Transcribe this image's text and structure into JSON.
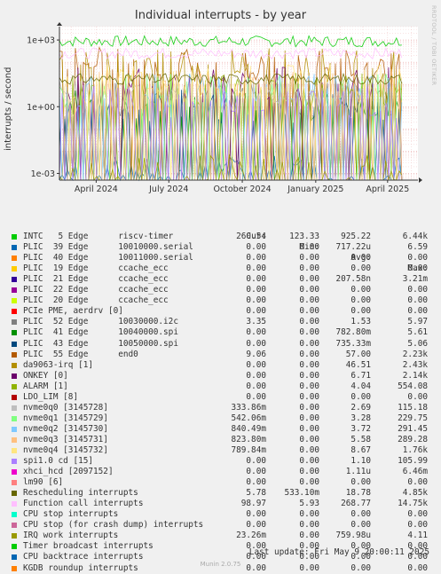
{
  "chart_data": {
    "type": "line",
    "title": "Individual interrupts - by year",
    "ylabel": "interrupts / second",
    "yscale": "log",
    "ylim": [
      0.0005,
      4000
    ],
    "yticks": [
      {
        "value": 1000,
        "label": "1e+03"
      },
      {
        "value": 1,
        "label": "1e+00"
      },
      {
        "value": 0.001,
        "label": "1e-03"
      }
    ],
    "xlim": [
      "2024-02-15",
      "2025-05-09"
    ],
    "xticks": [
      {
        "date": "2024-04-01",
        "label": "April 2024"
      },
      {
        "date": "2024-07-01",
        "label": "July 2024"
      },
      {
        "date": "2024-10-01",
        "label": "October 2024"
      },
      {
        "date": "2025-01-01",
        "label": "January 2025"
      },
      {
        "date": "2025-04-01",
        "label": "April 2025"
      }
    ],
    "grid": true,
    "series": [
      {
        "name": "INTC   5 Edge      riscv-timer",
        "color": "#00cc00",
        "values": {
          "cur": "260.54",
          "min": "123.33",
          "avg": "925.22",
          "max": "6.44k"
        }
      },
      {
        "name": "PLIC  39 Edge      10010000.serial",
        "color": "#0066b3",
        "values": {
          "cur": "0.00",
          "min": "0.00",
          "avg": "717.22u",
          "max": "6.59"
        }
      },
      {
        "name": "PLIC  40 Edge      10011000.serial",
        "color": "#ff8000",
        "values": {
          "cur": "0.00",
          "min": "0.00",
          "avg": "0.00",
          "max": "0.00"
        }
      },
      {
        "name": "PLIC  19 Edge      ccache_ecc",
        "color": "#ffcc00",
        "values": {
          "cur": "0.00",
          "min": "0.00",
          "avg": "0.00",
          "max": "0.00"
        }
      },
      {
        "name": "PLIC  21 Edge      ccache_ecc",
        "color": "#330099",
        "values": {
          "cur": "0.00",
          "min": "0.00",
          "avg": "207.58n",
          "max": "3.21m"
        }
      },
      {
        "name": "PLIC  22 Edge      ccache_ecc",
        "color": "#990099",
        "values": {
          "cur": "0.00",
          "min": "0.00",
          "avg": "0.00",
          "max": "0.00"
        }
      },
      {
        "name": "PLIC  20 Edge      ccache_ecc",
        "color": "#ccff00",
        "values": {
          "cur": "0.00",
          "min": "0.00",
          "avg": "0.00",
          "max": "0.00"
        }
      },
      {
        "name": "PCIe PME, aerdrv [0]",
        "color": "#ff0000",
        "values": {
          "cur": "0.00",
          "min": "0.00",
          "avg": "0.00",
          "max": "0.00"
        }
      },
      {
        "name": "PLIC  52 Edge      10030000.i2c",
        "color": "#808080",
        "values": {
          "cur": "3.35",
          "min": "0.00",
          "avg": "1.53",
          "max": "5.97"
        }
      },
      {
        "name": "PLIC  41 Edge      10040000.spi",
        "color": "#008f00",
        "values": {
          "cur": "0.00",
          "min": "0.00",
          "avg": "782.80m",
          "max": "5.61"
        }
      },
      {
        "name": "PLIC  43 Edge      10050000.spi",
        "color": "#00487d",
        "values": {
          "cur": "0.00",
          "min": "0.00",
          "avg": "735.33m",
          "max": "5.06"
        }
      },
      {
        "name": "PLIC  55 Edge      end0",
        "color": "#b35a00",
        "values": {
          "cur": "9.06",
          "min": "0.00",
          "avg": "57.00",
          "max": "2.23k"
        }
      },
      {
        "name": "da9063-irq [1]",
        "color": "#b38f00",
        "values": {
          "cur": "0.00",
          "min": "0.00",
          "avg": "46.51",
          "max": "2.43k"
        }
      },
      {
        "name": "ONKEY [0]",
        "color": "#6b006b",
        "values": {
          "cur": "0.00",
          "min": "0.00",
          "avg": "6.71",
          "max": "2.14k"
        }
      },
      {
        "name": "ALARM [1]",
        "color": "#8fb300",
        "values": {
          "cur": "0.00",
          "min": "0.00",
          "avg": "4.04",
          "max": "554.08"
        }
      },
      {
        "name": "LDO_LIM [8]",
        "color": "#b30000",
        "values": {
          "cur": "0.00",
          "min": "0.00",
          "avg": "0.00",
          "max": "0.00"
        }
      },
      {
        "name": "nvme0q0 [3145728]",
        "color": "#bebebe",
        "values": {
          "cur": "333.86m",
          "min": "0.00",
          "avg": "2.69",
          "max": "115.18"
        }
      },
      {
        "name": "nvme0q1 [3145729]",
        "color": "#80ff80",
        "values": {
          "cur": "542.06m",
          "min": "0.00",
          "avg": "3.28",
          "max": "229.75"
        }
      },
      {
        "name": "nvme0q2 [3145730]",
        "color": "#80c9ff",
        "values": {
          "cur": "840.49m",
          "min": "0.00",
          "avg": "3.72",
          "max": "291.45"
        }
      },
      {
        "name": "nvme0q3 [3145731]",
        "color": "#ffc080",
        "values": {
          "cur": "823.80m",
          "min": "0.00",
          "avg": "5.58",
          "max": "289.28"
        }
      },
      {
        "name": "nvme0q4 [3145732]",
        "color": "#ffe680",
        "values": {
          "cur": "789.84m",
          "min": "0.00",
          "avg": "8.67",
          "max": "1.76k"
        }
      },
      {
        "name": "spi1.0 cd [15]",
        "color": "#aa80ff",
        "values": {
          "cur": "0.00",
          "min": "0.00",
          "avg": "1.10",
          "max": "105.99"
        }
      },
      {
        "name": "xhci_hcd [2097152]",
        "color": "#ee00cc",
        "values": {
          "cur": "0.00",
          "min": "0.00",
          "avg": "1.11u",
          "max": "6.46m"
        }
      },
      {
        "name": "lm90 [6]",
        "color": "#ff8080",
        "values": {
          "cur": "0.00",
          "min": "0.00",
          "avg": "0.00",
          "max": "0.00"
        }
      },
      {
        "name": "Rescheduling interrupts",
        "color": "#666600",
        "values": {
          "cur": "5.78",
          "min": "533.10m",
          "avg": "18.78",
          "max": "4.85k"
        }
      },
      {
        "name": "Function call interrupts",
        "color": "#ffbfff",
        "values": {
          "cur": "98.97",
          "min": "5.93",
          "avg": "268.77",
          "max": "14.75k"
        }
      },
      {
        "name": "CPU stop interrupts",
        "color": "#00ffcc",
        "values": {
          "cur": "0.00",
          "min": "0.00",
          "avg": "0.00",
          "max": "0.00"
        }
      },
      {
        "name": "CPU stop (for crash dump) interrupts",
        "color": "#cc6699",
        "values": {
          "cur": "0.00",
          "min": "0.00",
          "avg": "0.00",
          "max": "0.00"
        }
      },
      {
        "name": "IRQ work interrupts",
        "color": "#999900",
        "values": {
          "cur": "23.26m",
          "min": "0.00",
          "avg": "759.98u",
          "max": "4.11"
        }
      },
      {
        "name": "Timer broadcast interrupts",
        "color": "#00cc00",
        "values": {
          "cur": "0.00",
          "min": "0.00",
          "avg": "0.00",
          "max": "0.00"
        }
      },
      {
        "name": "CPU backtrace interrupts",
        "color": "#0066b3",
        "values": {
          "cur": "0.00",
          "min": "0.00",
          "avg": "0.00",
          "max": "0.00"
        }
      },
      {
        "name": "KGDB roundup interrupts",
        "color": "#ff8000",
        "values": {
          "cur": "0.00",
          "min": "0.00",
          "avg": "0.00",
          "max": "0.00"
        }
      }
    ],
    "column_headers": [
      "Cur:",
      "Min:",
      "Avg:",
      "Max:"
    ]
  },
  "side_label": "RRDTOOL / TOBI OETIKER",
  "last_update": "Last update: Fri May  9 20:00:11 2025",
  "footer": "Munin 2.0.75"
}
